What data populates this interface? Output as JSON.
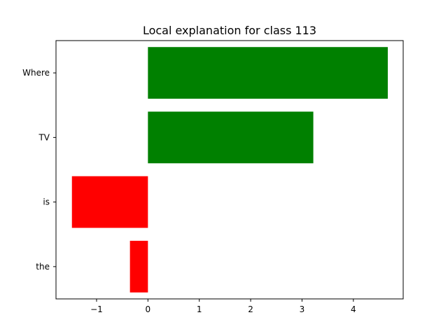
{
  "chart_data": {
    "type": "bar",
    "orientation": "horizontal",
    "title": "Local explanation for class 113",
    "xlabel": "",
    "ylabel": "",
    "categories": [
      "the",
      "is",
      "TV",
      "Where"
    ],
    "values": [
      -0.35,
      -1.48,
      3.22,
      4.67
    ],
    "xlim": [
      -1.79,
      4.97
    ],
    "xticks": [
      -1,
      0,
      1,
      2,
      3,
      4
    ],
    "xtick_labels": [
      "−1",
      "0",
      "1",
      "2",
      "3",
      "4"
    ],
    "grid": false,
    "legend": "none",
    "colors": {
      "positive": "#008000",
      "negative": "#ff0000"
    }
  }
}
